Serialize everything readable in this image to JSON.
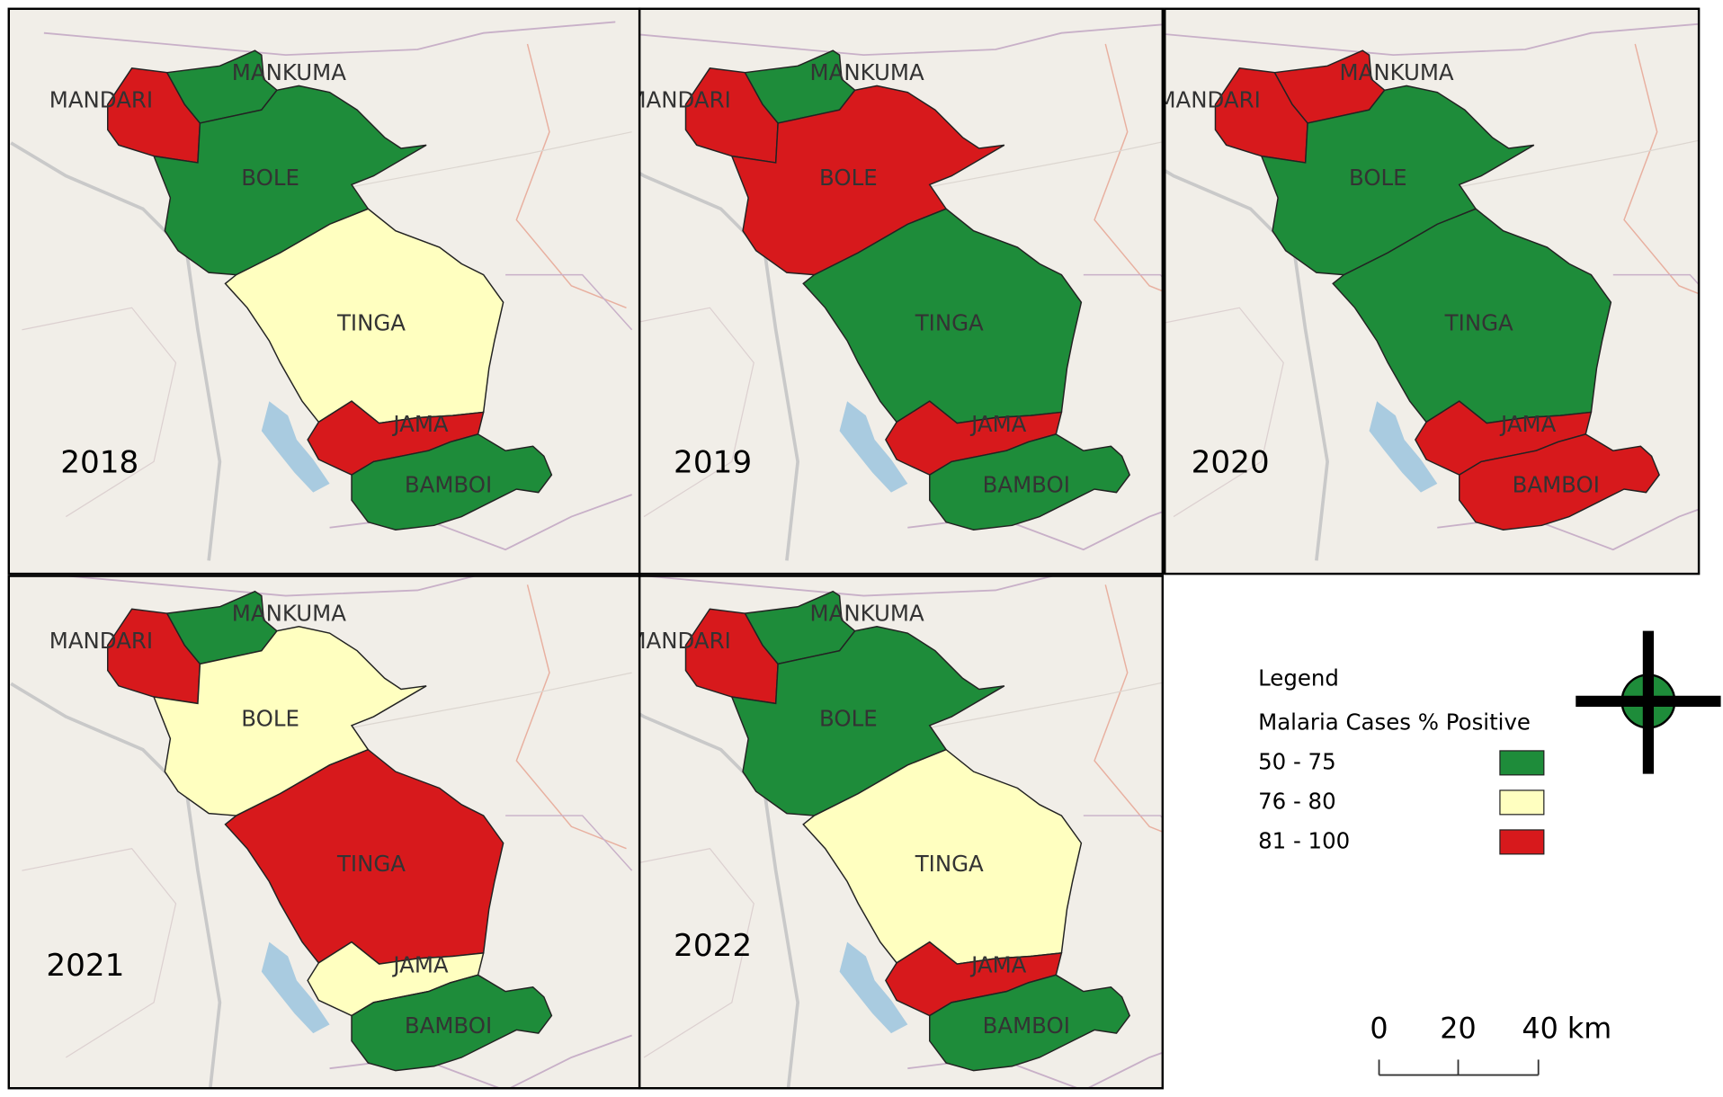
{
  "panels": [
    {
      "year": "2018",
      "districts": [
        {
          "name": "MANDARI",
          "color": "#d7191c"
        },
        {
          "name": "MANKUMA",
          "color": "#1e8c3a"
        },
        {
          "name": "BOLE",
          "color": "#1e8c3a"
        },
        {
          "name": "TINGA",
          "color": "#ffffc0"
        },
        {
          "name": "JAMA",
          "color": "#d7191c"
        },
        {
          "name": "BAMBOI",
          "color": "#1e8c3a"
        }
      ]
    },
    {
      "year": "2019",
      "districts": [
        {
          "name": "MANDARI",
          "color": "#d7191c"
        },
        {
          "name": "MANKUMA",
          "color": "#1e8c3a"
        },
        {
          "name": "BOLE",
          "color": "#d7191c"
        },
        {
          "name": "TINGA",
          "color": "#1e8c3a"
        },
        {
          "name": "JAMA",
          "color": "#d7191c"
        },
        {
          "name": "BAMBOI",
          "color": "#1e8c3a"
        }
      ]
    },
    {
      "year": "2020",
      "districts": [
        {
          "name": "MANDARI",
          "color": "#d7191c"
        },
        {
          "name": "MANKUMA",
          "color": "#d7191c"
        },
        {
          "name": "BOLE",
          "color": "#1e8c3a"
        },
        {
          "name": "TINGA",
          "color": "#1e8c3a"
        },
        {
          "name": "JAMA",
          "color": "#d7191c"
        },
        {
          "name": "BAMBOI",
          "color": "#d7191c"
        }
      ]
    },
    {
      "year": "2021",
      "districts": [
        {
          "name": "MANDARI",
          "color": "#d7191c"
        },
        {
          "name": "MANKUMA",
          "color": "#1e8c3a"
        },
        {
          "name": "BOLE",
          "color": "#ffffc0"
        },
        {
          "name": "TINGA",
          "color": "#d7191c"
        },
        {
          "name": "JAMA",
          "color": "#ffffc0"
        },
        {
          "name": "BAMBOI",
          "color": "#1e8c3a"
        }
      ]
    },
    {
      "year": "2022",
      "districts": [
        {
          "name": "MANDARI",
          "color": "#d7191c"
        },
        {
          "name": "MANKUMA",
          "color": "#1e8c3a"
        },
        {
          "name": "BOLE",
          "color": "#1e8c3a"
        },
        {
          "name": "TINGA",
          "color": "#ffffc0"
        },
        {
          "name": "JAMA",
          "color": "#d7191c"
        },
        {
          "name": "BAMBOI",
          "color": "#1e8c3a"
        }
      ]
    }
  ],
  "legend": {
    "title": "Legend",
    "subtitle": "Malaria Cases % Positive",
    "classes": [
      {
        "label": "50 - 75",
        "color": "#1e8c3a"
      },
      {
        "label": "76 - 80",
        "color": "#ffffc0"
      },
      {
        "label": "81 - 100",
        "color": "#d7191c"
      }
    ]
  },
  "scale_bar": {
    "labels": [
      "0",
      "20",
      "40 km"
    ]
  }
}
